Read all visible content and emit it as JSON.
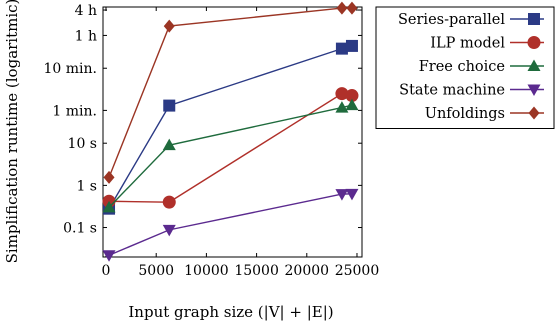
{
  "chart_data": {
    "type": "line",
    "xlabel": "Input graph size (|V| + |E|)",
    "ylabel": "Simplification runtime (logaritmic)",
    "xlim": [
      -300,
      25500
    ],
    "ylim_seconds": [
      0.02,
      17000
    ],
    "y_scale": "log",
    "grid": false,
    "legend_position": "outside-right",
    "x_ticks": [
      {
        "value": 0,
        "label": "0"
      },
      {
        "value": 5000,
        "label": "5000"
      },
      {
        "value": 10000,
        "label": "10000"
      },
      {
        "value": 15000,
        "label": "15000"
      },
      {
        "value": 20000,
        "label": "20000"
      },
      {
        "value": 25000,
        "label": "25000"
      }
    ],
    "y_ticks": [
      {
        "value": 0.1,
        "label": "0.1 s"
      },
      {
        "value": 1,
        "label": "1 s"
      },
      {
        "value": 10,
        "label": "10 s"
      },
      {
        "value": 60,
        "label": "1 min."
      },
      {
        "value": 600,
        "label": "10 min."
      },
      {
        "value": 3600,
        "label": "1 h"
      },
      {
        "value": 14400,
        "label": "4 h"
      }
    ],
    "series": [
      {
        "name": "Series-parallel",
        "color": "#2b3a85",
        "marker": "square",
        "x": [
          300,
          6300,
          23500,
          24500
        ],
        "y": [
          0.28,
          78,
          1750,
          2030
        ]
      },
      {
        "name": "ILP model",
        "color": "#b0302a",
        "marker": "circle",
        "x": [
          300,
          6300,
          23500,
          24500
        ],
        "y": [
          0.42,
          0.4,
          150,
          135
        ]
      },
      {
        "name": "Free choice",
        "color": "#1f6b3d",
        "marker": "triangle-up",
        "x": [
          300,
          6300,
          23500,
          24500
        ],
        "y": [
          0.3,
          9,
          70,
          80
        ]
      },
      {
        "name": "State machine",
        "color": "#5b2a8f",
        "marker": "triangle-down",
        "x": [
          300,
          6300,
          23500,
          24500
        ],
        "y": [
          0.022,
          0.088,
          0.62,
          0.63
        ]
      },
      {
        "name": "Unfoldings",
        "color": "#9b3524",
        "marker": "diamond",
        "x": [
          300,
          6300,
          23500,
          24500
        ],
        "y": [
          1.55,
          6000,
          16000,
          16000
        ]
      }
    ]
  }
}
